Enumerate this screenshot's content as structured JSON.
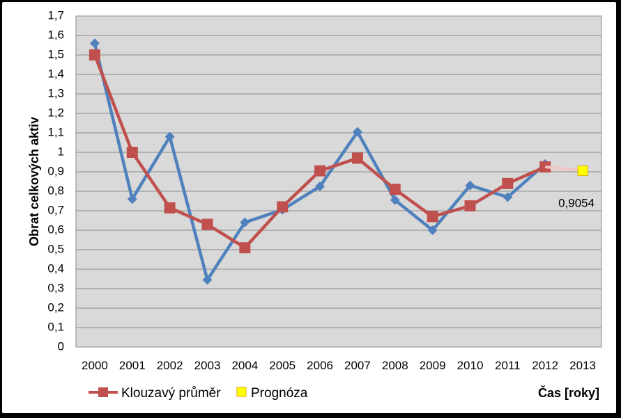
{
  "chart_data": {
    "type": "line",
    "categories": [
      "2000",
      "2001",
      "2002",
      "2003",
      "2004",
      "2005",
      "2006",
      "2007",
      "2008",
      "2009",
      "2010",
      "2011",
      "2012",
      "2013"
    ],
    "ylim": [
      0,
      1.7
    ],
    "ytick_step": 0.1,
    "ytick_labels": [
      "0",
      "0,1",
      "0,2",
      "0,3",
      "0,4",
      "0,5",
      "0,6",
      "0,7",
      "0,8",
      "0,9",
      "1",
      "1,1",
      "1,2",
      "1,3",
      "1,4",
      "1,5",
      "1,6",
      "1,7"
    ],
    "ylabel": "Obrat celkových aktiv",
    "xlabel": "Čas [roky]",
    "grid": true,
    "legend_position": "bottom-left",
    "series": [
      {
        "color": "#4F81BD",
        "marker": "diamond",
        "values": [
          1.56,
          0.76,
          1.08,
          0.345,
          0.64,
          0.705,
          0.825,
          1.105,
          0.755,
          0.6,
          0.83,
          0.77,
          0.94,
          null
        ]
      },
      {
        "name": "Klouzavý průměr",
        "color": "#C0504D",
        "marker": "square",
        "values": [
          1.5,
          1.0,
          0.715,
          0.63,
          0.51,
          0.72,
          0.905,
          0.97,
          0.81,
          0.67,
          0.725,
          0.84,
          0.925,
          null
        ]
      },
      {
        "name": "Prognóza",
        "color": "#FFFF00",
        "marker": "square",
        "connector_color": "#F2C4C4",
        "values": [
          null,
          null,
          null,
          null,
          null,
          null,
          null,
          null,
          null,
          null,
          null,
          null,
          0.925,
          0.9054
        ]
      }
    ],
    "annotations": [
      {
        "category": "2013",
        "value": 0.9054,
        "text": "0,9054"
      }
    ]
  }
}
